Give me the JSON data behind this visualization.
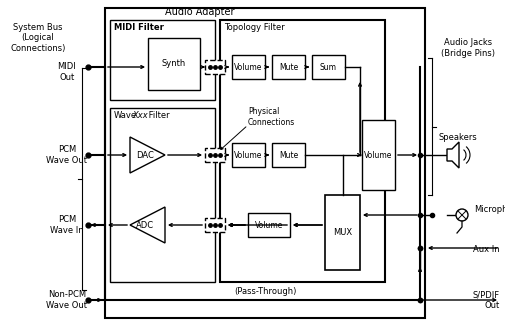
{
  "bg_color": "#ffffff",
  "labels": {
    "system_bus": "System Bus\n(Logical\nConnections)",
    "audio_adapter": "Audio Adapter",
    "midi_filter": "MIDI Filter",
    "wavexxx_filter_pre": "Wave",
    "wavexxx_filter_ital": "Xxx",
    "wavexxx_filter_post": " Filter",
    "topology_filter": "Topology Filter",
    "audio_jacks": "Audio Jacks\n(Bridge Pins)",
    "physical_conn": "Physical\nConnections",
    "midi_out": "MIDI\nOut",
    "pcm_wave_out": "PCM\nWave Out",
    "pcm_wave_in": "PCM\nWave In",
    "non_pcm_wave_out": "Non-PCM\nWave Out",
    "speakers": "Speakers",
    "microphone": "Microphone",
    "aux_in": "Aux In",
    "spdif_out": "S/PDIF\nOut",
    "synth": "Synth",
    "dac": "DAC",
    "adc": "ADC",
    "pass_through": "(Pass-Through)",
    "volume": "Volume",
    "mute": "Mute",
    "sum": "Sum",
    "mux": "MUX"
  }
}
